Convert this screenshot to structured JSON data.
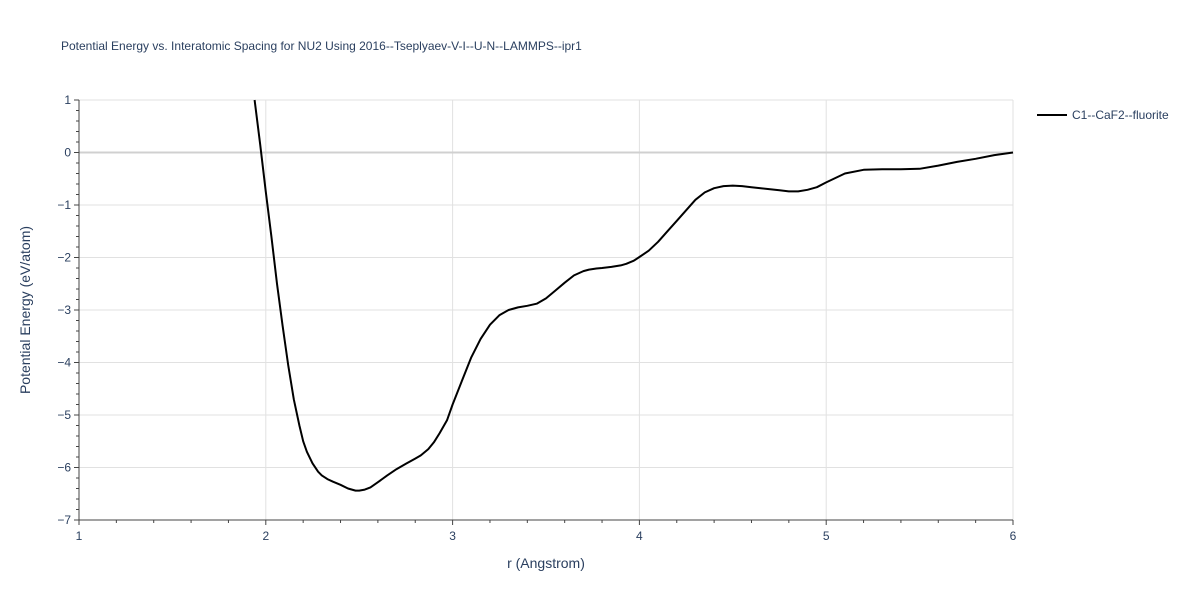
{
  "chart_data": {
    "type": "line",
    "title": "Potential Energy vs. Interatomic Spacing for NU2 Using 2016--Tseplyaev-V-I--U-N--LAMMPS--ipr1",
    "xlabel": "r (Angstrom)",
    "ylabel": "Potential Energy (eV/atom)",
    "xlim": [
      1,
      6
    ],
    "ylim": [
      -7,
      1
    ],
    "x_ticks": [
      1,
      2,
      3,
      4,
      5,
      6
    ],
    "x_tick_labels": [
      "1",
      "2",
      "3",
      "4",
      "5",
      "6"
    ],
    "y_ticks": [
      -7,
      -6,
      -5,
      -4,
      -3,
      -2,
      -1,
      0,
      1
    ],
    "y_tick_labels": [
      "−7",
      "−6",
      "−5",
      "−4",
      "−3",
      "−2",
      "−1",
      "0",
      "1"
    ],
    "grid": true,
    "legend_position": "top-right",
    "series": [
      {
        "name": "C1--CaF2--fluorite",
        "color": "#000000",
        "x": [
          1.94,
          1.97,
          2.0,
          2.03,
          2.06,
          2.09,
          2.12,
          2.15,
          2.18,
          2.2,
          2.22,
          2.25,
          2.28,
          2.3,
          2.33,
          2.36,
          2.4,
          2.44,
          2.48,
          2.5,
          2.53,
          2.56,
          2.6,
          2.65,
          2.7,
          2.75,
          2.8,
          2.83,
          2.87,
          2.9,
          2.93,
          2.97,
          3.0,
          3.05,
          3.1,
          3.15,
          3.2,
          3.25,
          3.3,
          3.35,
          3.4,
          3.45,
          3.5,
          3.55,
          3.6,
          3.65,
          3.7,
          3.73,
          3.77,
          3.8,
          3.85,
          3.9,
          3.93,
          3.97,
          4.0,
          4.05,
          4.1,
          4.15,
          4.2,
          4.25,
          4.3,
          4.35,
          4.4,
          4.45,
          4.5,
          4.55,
          4.6,
          4.65,
          4.7,
          4.75,
          4.8,
          4.85,
          4.9,
          4.95,
          5.0,
          5.1,
          5.2,
          5.3,
          5.4,
          5.5,
          5.6,
          5.7,
          5.8,
          5.9,
          6.0
        ],
        "y": [
          1.0,
          0.15,
          -0.75,
          -1.6,
          -2.5,
          -3.3,
          -4.05,
          -4.7,
          -5.2,
          -5.5,
          -5.7,
          -5.92,
          -6.08,
          -6.15,
          -6.22,
          -6.27,
          -6.33,
          -6.4,
          -6.44,
          -6.44,
          -6.42,
          -6.38,
          -6.28,
          -6.15,
          -6.03,
          -5.93,
          -5.83,
          -5.77,
          -5.65,
          -5.52,
          -5.35,
          -5.1,
          -4.8,
          -4.35,
          -3.9,
          -3.55,
          -3.28,
          -3.1,
          -3.0,
          -2.95,
          -2.92,
          -2.88,
          -2.78,
          -2.63,
          -2.48,
          -2.34,
          -2.26,
          -2.23,
          -2.21,
          -2.2,
          -2.18,
          -2.15,
          -2.12,
          -2.06,
          -1.99,
          -1.87,
          -1.7,
          -1.5,
          -1.3,
          -1.1,
          -0.9,
          -0.76,
          -0.68,
          -0.64,
          -0.63,
          -0.64,
          -0.66,
          -0.68,
          -0.7,
          -0.72,
          -0.74,
          -0.74,
          -0.71,
          -0.66,
          -0.57,
          -0.4,
          -0.33,
          -0.32,
          -0.32,
          -0.31,
          -0.25,
          -0.18,
          -0.12,
          -0.05,
          0.0
        ]
      }
    ]
  }
}
